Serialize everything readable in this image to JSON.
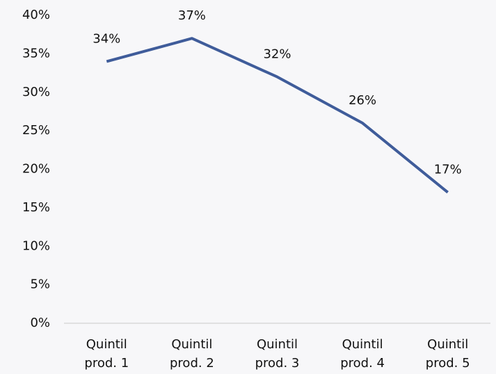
{
  "chart_data": {
    "type": "line",
    "categories": [
      "Quintil prod. 1",
      "Quintil prod. 2",
      "Quintil prod. 3",
      "Quintil prod. 4",
      "Quintil prod. 5"
    ],
    "values": [
      34,
      37,
      32,
      26,
      17
    ],
    "value_labels": [
      "34%",
      "37%",
      "32%",
      "26%",
      "17%"
    ],
    "color": "#3f5c9a",
    "ylim": [
      0,
      40
    ],
    "yticks": [
      {
        "value": 0,
        "label": "0%"
      },
      {
        "value": 5,
        "label": "5%"
      },
      {
        "value": 10,
        "label": "10%"
      },
      {
        "value": 15,
        "label": "15%"
      },
      {
        "value": 20,
        "label": "20%"
      },
      {
        "value": 25,
        "label": "25%"
      },
      {
        "value": 30,
        "label": "30%"
      },
      {
        "value": 35,
        "label": "35%"
      },
      {
        "value": 40,
        "label": "40%"
      }
    ],
    "grid": false
  }
}
